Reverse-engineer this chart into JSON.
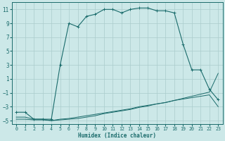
{
  "xlabel": "Humidex (Indice chaleur)",
  "xlim": [
    -0.5,
    23.5
  ],
  "ylim": [
    -5.5,
    12.0
  ],
  "xticks": [
    0,
    1,
    2,
    3,
    4,
    5,
    6,
    7,
    8,
    9,
    10,
    11,
    12,
    13,
    14,
    15,
    16,
    17,
    18,
    19,
    20,
    21,
    22,
    23
  ],
  "yticks": [
    -5,
    -3,
    -1,
    1,
    3,
    5,
    7,
    9,
    11
  ],
  "bg_color": "#cce8e8",
  "grid_color": "#aacccc",
  "line_color": "#1a6b6b",
  "curve_main_x": [
    0,
    1,
    2,
    3,
    4,
    5,
    6,
    7,
    8,
    9,
    10,
    11,
    12,
    13,
    14,
    15,
    16,
    17,
    18,
    19,
    20,
    21,
    22,
    23
  ],
  "curve_main_y": [
    -3.8,
    -3.8,
    -4.8,
    -4.8,
    -4.8,
    3.0,
    9.0,
    8.5,
    10.0,
    10.3,
    11.0,
    11.0,
    10.5,
    11.0,
    11.2,
    11.2,
    10.8,
    10.8,
    10.5,
    6.0,
    2.3,
    2.3,
    -0.5,
    -2.0
  ],
  "curve_diag1_x": [
    0,
    1,
    2,
    3,
    4,
    5,
    6,
    7,
    8,
    9,
    10,
    11,
    12,
    13,
    14,
    15,
    16,
    17,
    18,
    19,
    20,
    21,
    22,
    23
  ],
  "curve_diag1_y": [
    -4.8,
    -4.8,
    -4.9,
    -4.9,
    -5.0,
    -4.8,
    -4.7,
    -4.5,
    -4.3,
    -4.1,
    -3.9,
    -3.7,
    -3.5,
    -3.3,
    -3.0,
    -2.8,
    -2.6,
    -2.4,
    -2.1,
    -1.9,
    -1.7,
    -1.5,
    -1.3,
    -3.0
  ],
  "curve_diag2_x": [
    0,
    1,
    2,
    3,
    4,
    5,
    6,
    7,
    8,
    9,
    10,
    11,
    12,
    13,
    14,
    15,
    16,
    17,
    18,
    19,
    20,
    21,
    22,
    23
  ],
  "curve_diag2_y": [
    -4.5,
    -4.5,
    -4.8,
    -4.8,
    -5.0,
    -4.9,
    -4.8,
    -4.7,
    -4.5,
    -4.3,
    -4.0,
    -3.8,
    -3.6,
    -3.4,
    -3.1,
    -2.9,
    -2.6,
    -2.4,
    -2.1,
    -1.8,
    -1.5,
    -1.2,
    -0.9,
    1.8
  ]
}
